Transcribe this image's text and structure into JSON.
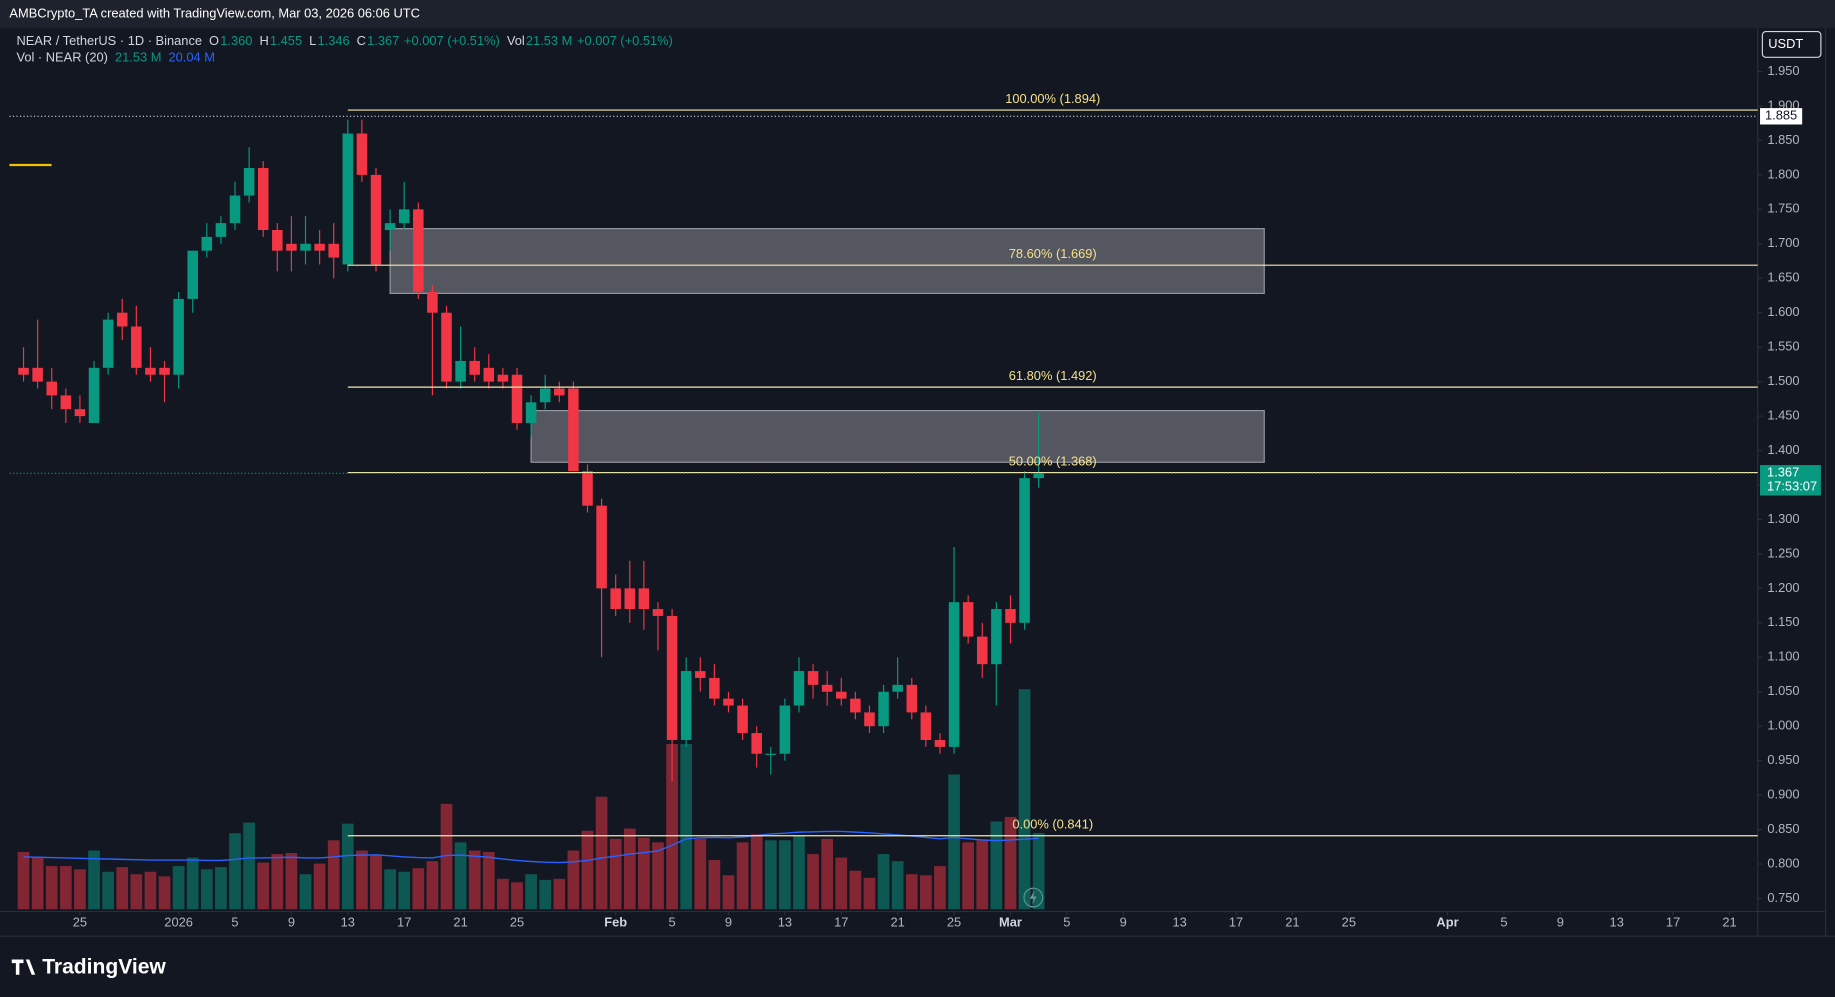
{
  "chart_data": {
    "type": "candlestick",
    "watermark": "AMBCrypto_TA created with TradingView.com, Mar 03, 2026 06:06 UTC",
    "symbol": "NEAR / TetherUS · 1D · Binance",
    "legend": [
      {
        "label": "O",
        "value": "1.360"
      },
      {
        "label": "H",
        "value": "1.455"
      },
      {
        "label": "L",
        "value": "1.346"
      },
      {
        "label": "C",
        "value": "1.367"
      }
    ],
    "change": "+0.007 (+0.51%)",
    "volume_label": "Vol",
    "volume_value": "21.53 M",
    "volume_change": "+0.007 (+0.51%)",
    "volume_indicator": "Vol · NEAR (20)",
    "volume_indicator_values": [
      "21.53 M",
      "20.04 M"
    ],
    "currency": "USDT",
    "logo": "TradingView",
    "up_color": "#089981",
    "down_color": "#f23645",
    "ma_color": "#2962ff",
    "x": [
      "2025-12-21",
      "2025-12-22",
      "2025-12-23",
      "2025-12-24",
      "2025-12-25",
      "2025-12-26",
      "2025-12-27",
      "2025-12-28",
      "2025-12-29",
      "2025-12-30",
      "2025-12-31",
      "2026-01-01",
      "2026-01-02",
      "2026-01-03",
      "2026-01-04",
      "2026-01-05",
      "2026-01-06",
      "2026-01-07",
      "2026-01-08",
      "2026-01-09",
      "2026-01-10",
      "2026-01-11",
      "2026-01-12",
      "2026-01-13",
      "2026-01-14",
      "2026-01-15",
      "2026-01-16",
      "2026-01-17",
      "2026-01-18",
      "2026-01-19",
      "2026-01-20",
      "2026-01-21",
      "2026-01-22",
      "2026-01-23",
      "2026-01-24",
      "2026-01-25",
      "2026-01-26",
      "2026-01-27",
      "2026-01-28",
      "2026-01-29",
      "2026-01-30",
      "2026-01-31",
      "2026-02-01",
      "2026-02-02",
      "2026-02-03",
      "2026-02-04",
      "2026-02-05",
      "2026-02-06",
      "2026-02-07",
      "2026-02-08",
      "2026-02-09",
      "2026-02-10",
      "2026-02-11",
      "2026-02-12",
      "2026-02-13",
      "2026-02-14",
      "2026-02-15",
      "2026-02-16",
      "2026-02-17",
      "2026-02-18",
      "2026-02-19",
      "2026-02-20",
      "2026-02-21",
      "2026-02-22",
      "2026-02-23",
      "2026-02-24",
      "2026-02-25",
      "2026-02-26",
      "2026-02-27",
      "2026-02-28",
      "2026-03-01",
      "2026-03-02",
      "2026-03-03"
    ],
    "open": [
      1.52,
      1.52,
      1.5,
      1.48,
      1.46,
      1.44,
      1.52,
      1.6,
      1.58,
      1.52,
      1.52,
      1.51,
      1.62,
      1.69,
      1.71,
      1.73,
      1.77,
      1.81,
      1.72,
      1.7,
      1.69,
      1.7,
      1.7,
      1.67,
      1.86,
      1.8,
      1.72,
      1.73,
      1.75,
      1.63,
      1.6,
      1.5,
      1.53,
      1.52,
      1.51,
      1.51,
      1.44,
      1.47,
      1.49,
      1.49,
      1.37,
      1.32,
      1.2,
      1.2,
      1.2,
      1.17,
      1.16,
      0.98,
      1.08,
      1.07,
      1.04,
      1.03,
      0.99,
      0.96,
      0.96,
      1.03,
      1.08,
      1.06,
      1.05,
      1.04,
      1.02,
      1.0,
      1.05,
      1.06,
      1.02,
      0.98,
      0.97,
      1.18,
      1.13,
      1.09,
      1.17,
      1.15,
      1.36
    ],
    "high": [
      1.55,
      1.59,
      1.52,
      1.49,
      1.48,
      1.53,
      1.6,
      1.62,
      1.61,
      1.55,
      1.53,
      1.63,
      1.69,
      1.73,
      1.74,
      1.79,
      1.84,
      1.82,
      1.73,
      1.74,
      1.74,
      1.72,
      1.73,
      1.88,
      1.88,
      1.81,
      1.75,
      1.79,
      1.76,
      1.64,
      1.61,
      1.58,
      1.55,
      1.54,
      1.52,
      1.52,
      1.48,
      1.51,
      1.5,
      1.5,
      1.38,
      1.33,
      1.22,
      1.24,
      1.24,
      1.18,
      1.17,
      1.1,
      1.1,
      1.09,
      1.05,
      1.04,
      1.0,
      0.97,
      1.04,
      1.1,
      1.09,
      1.08,
      1.07,
      1.05,
      1.03,
      1.06,
      1.1,
      1.07,
      1.03,
      0.99,
      1.26,
      1.19,
      1.15,
      1.18,
      1.19,
      1.37,
      1.455
    ],
    "low": [
      1.5,
      1.49,
      1.46,
      1.44,
      1.44,
      1.44,
      1.51,
      1.56,
      1.51,
      1.5,
      1.47,
      1.49,
      1.6,
      1.68,
      1.7,
      1.72,
      1.76,
      1.71,
      1.66,
      1.66,
      1.67,
      1.67,
      1.65,
      1.66,
      1.79,
      1.66,
      1.69,
      1.72,
      1.62,
      1.48,
      1.49,
      1.49,
      1.5,
      1.49,
      1.49,
      1.43,
      1.42,
      1.46,
      1.47,
      1.37,
      1.31,
      1.1,
      1.16,
      1.15,
      1.14,
      1.11,
      0.92,
      0.97,
      1.05,
      1.03,
      1.02,
      0.98,
      0.94,
      0.93,
      0.95,
      1.02,
      1.04,
      1.03,
      1.03,
      1.01,
      0.99,
      0.99,
      1.04,
      1.01,
      0.97,
      0.96,
      0.96,
      1.12,
      1.07,
      1.03,
      1.12,
      1.14,
      1.346
    ],
    "close": [
      1.51,
      1.5,
      1.48,
      1.46,
      1.45,
      1.52,
      1.59,
      1.58,
      1.52,
      1.51,
      1.51,
      1.62,
      1.69,
      1.71,
      1.73,
      1.77,
      1.81,
      1.72,
      1.69,
      1.69,
      1.7,
      1.69,
      1.68,
      1.86,
      1.8,
      1.67,
      1.73,
      1.75,
      1.63,
      1.6,
      1.5,
      1.53,
      1.51,
      1.5,
      1.5,
      1.44,
      1.47,
      1.49,
      1.48,
      1.37,
      1.32,
      1.2,
      1.17,
      1.17,
      1.17,
      1.16,
      0.98,
      1.08,
      1.07,
      1.04,
      1.03,
      0.99,
      0.96,
      0.96,
      1.03,
      1.08,
      1.06,
      1.05,
      1.04,
      1.02,
      1.0,
      1.05,
      1.06,
      1.02,
      0.98,
      0.97,
      1.18,
      1.13,
      1.09,
      1.17,
      1.15,
      1.36,
      1.367
    ],
    "volume": [
      16.2,
      14.6,
      12.2,
      12.2,
      11.3,
      16.6,
      10.6,
      11.9,
      9.9,
      10.6,
      9.3,
      12.2,
      14.6,
      11.3,
      11.9,
      21.5,
      24.5,
      13.2,
      15.6,
      15.9,
      9.9,
      12.9,
      19.5,
      24.2,
      16.6,
      15.2,
      11.3,
      10.6,
      11.6,
      13.6,
      29.8,
      18.9,
      16.6,
      16.2,
      8.6,
      7.6,
      9.9,
      8.3,
      8.6,
      16.6,
      22.2,
      31.8,
      19.9,
      22.8,
      20.2,
      18.9,
      46.7,
      46.7,
      19.9,
      13.9,
      9.6,
      18.9,
      21.2,
      19.5,
      19.5,
      20.9,
      15.6,
      19.9,
      14.6,
      10.9,
      8.9,
      15.6,
      13.6,
      9.9,
      9.6,
      12.2,
      38.1,
      18.9,
      19.5,
      24.8,
      26.1,
      62.2,
      21.53
    ],
    "volume_ma": [
      14.8,
      14.7,
      14.6,
      14.5,
      14.4,
      14.3,
      14.2,
      14.1,
      14.0,
      13.9,
      13.9,
      13.9,
      13.9,
      13.8,
      13.8,
      14.1,
      14.5,
      14.5,
      14.6,
      14.7,
      14.5,
      14.5,
      14.8,
      15.2,
      15.3,
      15.4,
      15.1,
      14.8,
      14.6,
      14.5,
      15.2,
      15.3,
      15.0,
      14.7,
      14.2,
      13.8,
      13.5,
      13.3,
      13.2,
      13.4,
      13.8,
      14.5,
      15.0,
      15.6,
      16.0,
      16.5,
      18.1,
      19.9,
      20.2,
      20.3,
      20.2,
      20.4,
      20.8,
      21.3,
      21.5,
      21.8,
      21.9,
      22.0,
      22.0,
      21.8,
      21.6,
      21.3,
      21.0,
      20.7,
      20.3,
      19.9,
      20.3,
      19.9,
      19.6,
      19.4,
      19.6,
      19.8,
      20.04
    ],
    "xlim": [
      "2025-12-20",
      "2026-04-23"
    ],
    "xticks": [
      {
        "value": "2025-12-25",
        "label": "25"
      },
      {
        "value": "2026-01-01",
        "label": "2026"
      },
      {
        "value": "2026-01-05",
        "label": "5"
      },
      {
        "value": "2026-01-09",
        "label": "9"
      },
      {
        "value": "2026-01-13",
        "label": "13"
      },
      {
        "value": "2026-01-17",
        "label": "17"
      },
      {
        "value": "2026-01-21",
        "label": "21"
      },
      {
        "value": "2026-01-25",
        "label": "25"
      },
      {
        "value": "2026-02-01",
        "label": "Feb"
      },
      {
        "value": "2026-02-05",
        "label": "5"
      },
      {
        "value": "2026-02-09",
        "label": "9"
      },
      {
        "value": "2026-02-13",
        "label": "13"
      },
      {
        "value": "2026-02-17",
        "label": "17"
      },
      {
        "value": "2026-02-21",
        "label": "21"
      },
      {
        "value": "2026-02-25",
        "label": "25"
      },
      {
        "value": "2026-03-01",
        "label": "Mar"
      },
      {
        "value": "2026-03-05",
        "label": "5"
      },
      {
        "value": "2026-03-09",
        "label": "9"
      },
      {
        "value": "2026-03-13",
        "label": "13"
      },
      {
        "value": "2026-03-17",
        "label": "17"
      },
      {
        "value": "2026-03-21",
        "label": "21"
      },
      {
        "value": "2026-03-25",
        "label": "25"
      },
      {
        "value": "2026-04-01",
        "label": "Apr"
      },
      {
        "value": "2026-04-05",
        "label": "5"
      },
      {
        "value": "2026-04-09",
        "label": "9"
      },
      {
        "value": "2026-04-13",
        "label": "13"
      },
      {
        "value": "2026-04-17",
        "label": "17"
      },
      {
        "value": "2026-04-21",
        "label": "21"
      }
    ],
    "ylim": [
      0.731,
      2.013
    ],
    "yticks": [
      {
        "value": 0.75,
        "label": "0.750"
      },
      {
        "value": 0.8,
        "label": "0.800"
      },
      {
        "value": 0.85,
        "label": "0.850"
      },
      {
        "value": 0.9,
        "label": "0.900"
      },
      {
        "value": 0.95,
        "label": "0.950"
      },
      {
        "value": 1.0,
        "label": "1.000"
      },
      {
        "value": 1.05,
        "label": "1.050"
      },
      {
        "value": 1.1,
        "label": "1.100"
      },
      {
        "value": 1.15,
        "label": "1.150"
      },
      {
        "value": 1.2,
        "label": "1.200"
      },
      {
        "value": 1.25,
        "label": "1.250"
      },
      {
        "value": 1.3,
        "label": "1.300"
      },
      {
        "value": 1.35,
        "label": "1.350"
      },
      {
        "value": 1.4,
        "label": "1.400"
      },
      {
        "value": 1.45,
        "label": "1.450"
      },
      {
        "value": 1.5,
        "label": "1.500"
      },
      {
        "value": 1.55,
        "label": "1.550"
      },
      {
        "value": 1.6,
        "label": "1.600"
      },
      {
        "value": 1.65,
        "label": "1.650"
      },
      {
        "value": 1.7,
        "label": "1.700"
      },
      {
        "value": 1.75,
        "label": "1.750"
      },
      {
        "value": 1.8,
        "label": "1.800"
      },
      {
        "value": 1.85,
        "label": "1.850"
      },
      {
        "value": 1.9,
        "label": "1.900"
      },
      {
        "value": 1.95,
        "label": "1.950"
      }
    ],
    "fib_start": "2026-01-13",
    "fib_levels": [
      {
        "label": "100.00% (1.894)",
        "value": 1.894
      },
      {
        "label": "78.60% (1.669)",
        "value": 1.669
      },
      {
        "label": "61.80% (1.492)",
        "value": 1.492
      },
      {
        "label": "50.00% (1.368)",
        "value": 1.368
      },
      {
        "label": "0.00% (0.841)",
        "value": 0.841
      }
    ],
    "zones": [
      {
        "from": "2026-01-16",
        "to": "2026-03-19",
        "top": 1.722,
        "bottom": 1.628
      },
      {
        "from": "2026-01-26",
        "to": "2026-03-19",
        "top": 1.458,
        "bottom": 1.383
      }
    ],
    "marked_price": {
      "value": 1.885,
      "label": "1.885"
    },
    "last_price": {
      "value": 1.367,
      "label": "1.367",
      "countdown": "17:53:07"
    }
  }
}
